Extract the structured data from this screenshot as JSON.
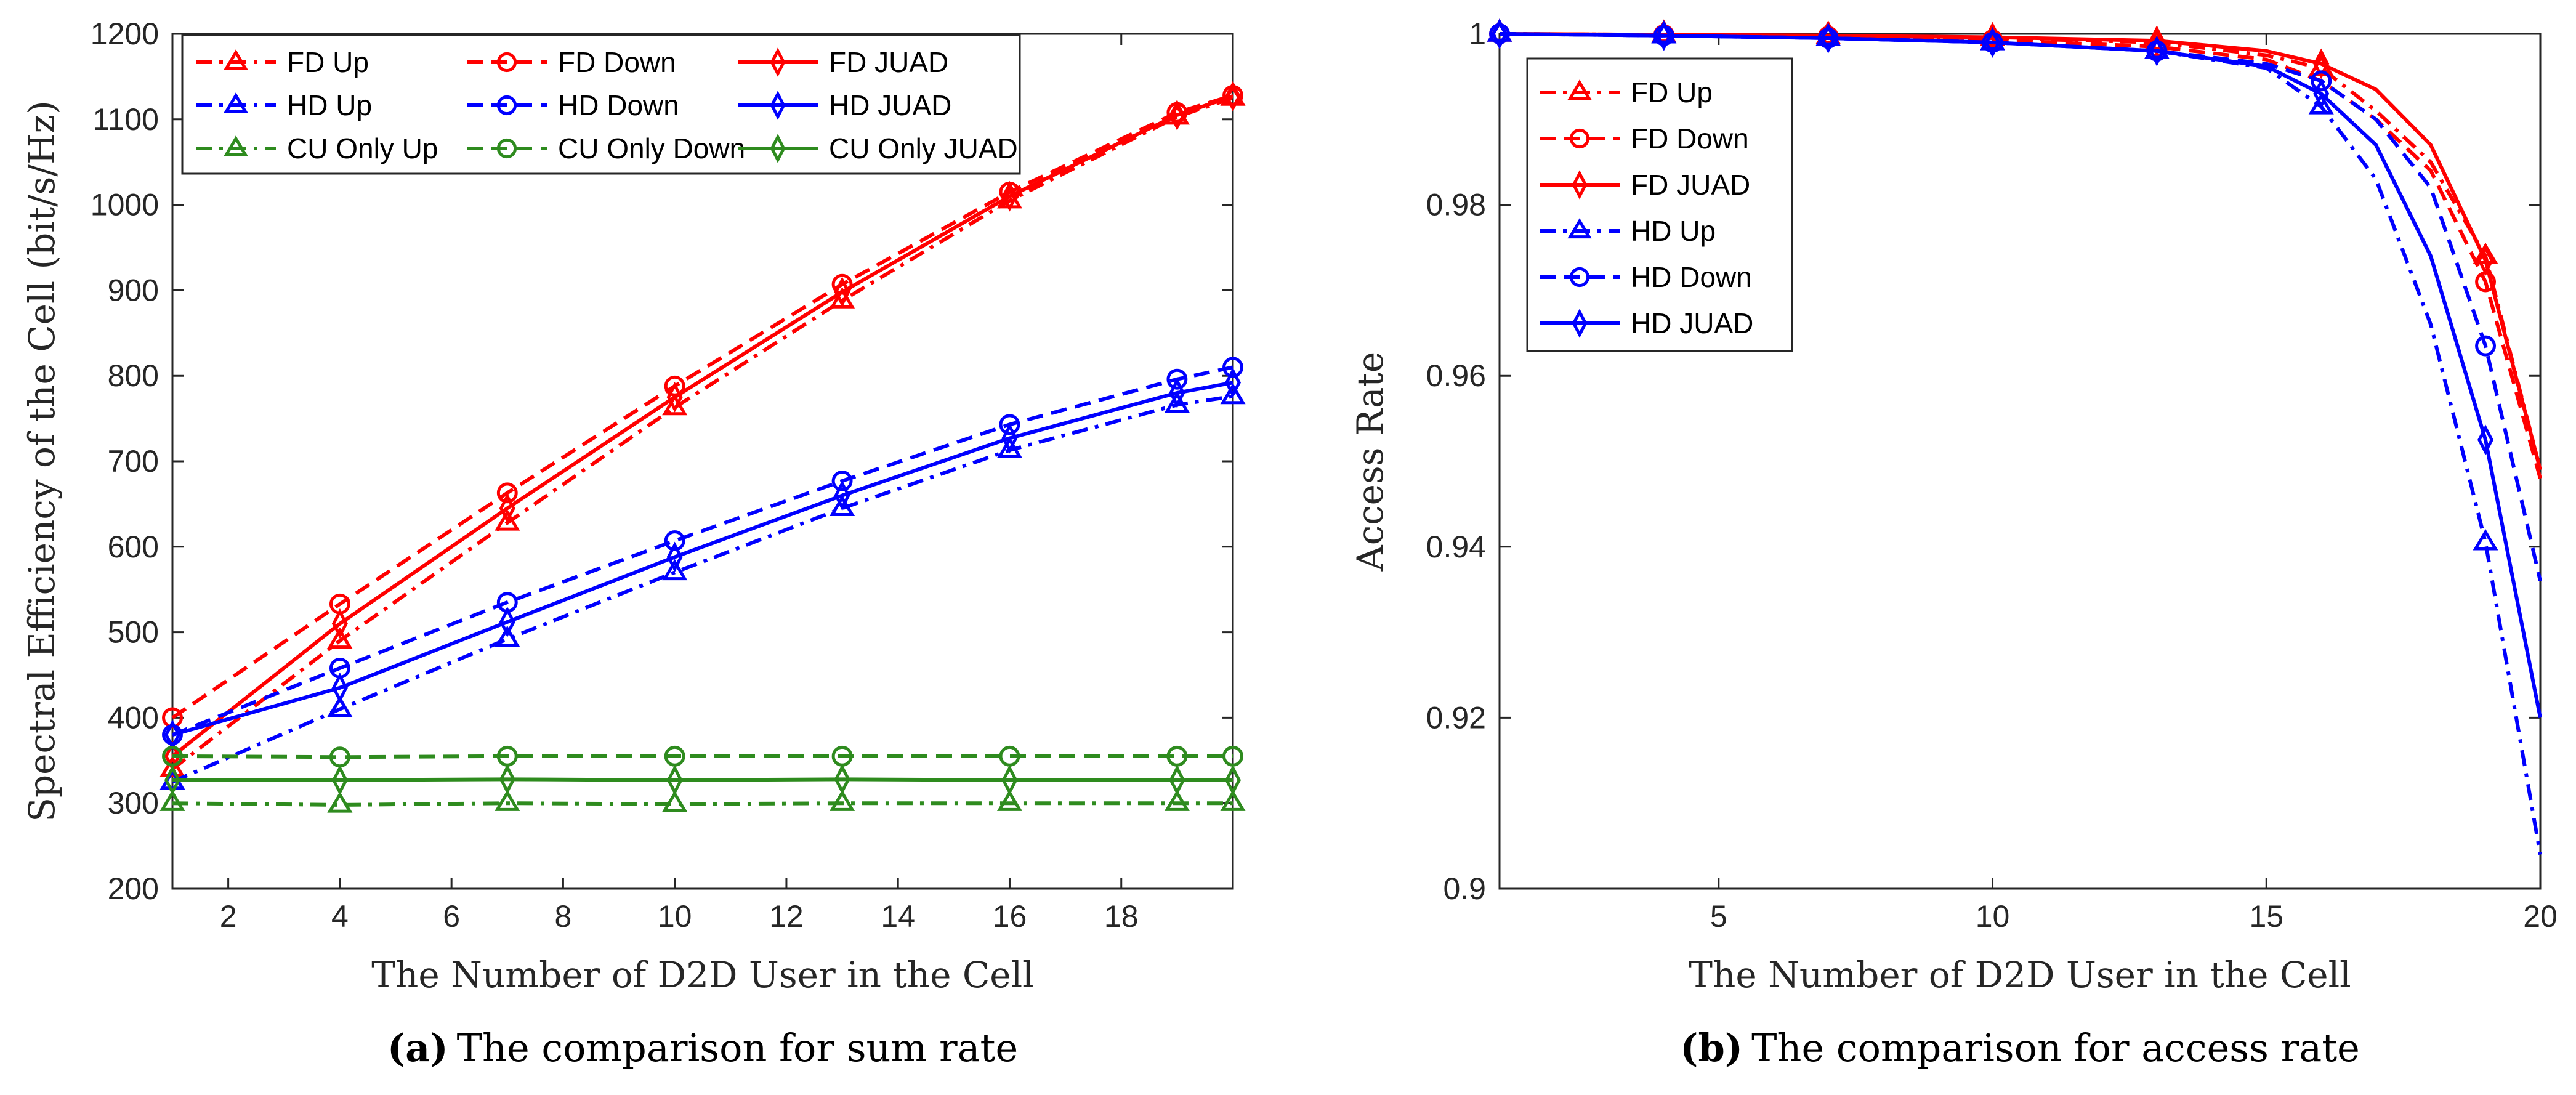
{
  "chart_data": [
    {
      "type": "line",
      "panel": "a",
      "caption_label": "(a)",
      "caption_text": "The comparison for sum rate",
      "xlabel": "The Number of D2D User in the Cell",
      "ylabel": "Spectral Efficiency of the Cell (bit/s/Hz)",
      "xlim": [
        1,
        20
      ],
      "ylim": [
        200,
        1200
      ],
      "xticks": [
        2,
        4,
        6,
        8,
        10,
        12,
        14,
        16,
        18
      ],
      "yticks": [
        200,
        300,
        400,
        500,
        600,
        700,
        800,
        900,
        1000,
        1100,
        1200
      ],
      "grid": false,
      "legend_position": "top-left",
      "legend_columns": 3,
      "x": [
        1,
        4,
        7,
        10,
        13,
        16,
        19,
        20
      ],
      "series": [
        {
          "name": "FD Up",
          "color": "#ff0000",
          "dash": "dashdot",
          "marker": "triangle",
          "values": [
            340,
            490,
            628,
            763,
            888,
            1005,
            1103,
            1125
          ]
        },
        {
          "name": "FD Down",
          "color": "#ff0000",
          "dash": "dashed",
          "marker": "circle",
          "values": [
            400,
            533,
            663,
            788,
            907,
            1015,
            1108,
            1128
          ]
        },
        {
          "name": "FD JUAD",
          "color": "#ff0000",
          "dash": "solid",
          "marker": "diamond",
          "values": [
            355,
            510,
            645,
            775,
            898,
            1010,
            1105,
            1127
          ]
        },
        {
          "name": "HD Up",
          "color": "#0000ff",
          "dash": "dashdot",
          "marker": "triangle",
          "values": [
            325,
            410,
            492,
            570,
            645,
            713,
            766,
            776
          ]
        },
        {
          "name": "HD Down",
          "color": "#0000ff",
          "dash": "dashed",
          "marker": "circle",
          "values": [
            380,
            458,
            535,
            607,
            677,
            743,
            796,
            810
          ]
        },
        {
          "name": "HD JUAD",
          "color": "#0000ff",
          "dash": "solid",
          "marker": "diamond",
          "values": [
            380,
            435,
            512,
            588,
            660,
            727,
            780,
            792
          ]
        },
        {
          "name": "CU Only Up",
          "color": "#2e8b1e",
          "dash": "dashdot",
          "marker": "triangle",
          "values": [
            300,
            298,
            300,
            299,
            300,
            300,
            300,
            300
          ]
        },
        {
          "name": "CU Only Down",
          "color": "#2e8b1e",
          "dash": "dashed",
          "marker": "circle",
          "values": [
            355,
            354,
            355,
            355,
            355,
            355,
            355,
            355
          ]
        },
        {
          "name": "CU Only JUAD",
          "color": "#2e8b1e",
          "dash": "solid",
          "marker": "diamond",
          "values": [
            327,
            327,
            328,
            327,
            328,
            327,
            327,
            327
          ]
        }
      ]
    },
    {
      "type": "line",
      "panel": "b",
      "caption_label": "(b)",
      "caption_text": "The comparison for access rate",
      "xlabel": "The Number of D2D User in the Cell",
      "ylabel": "Access Rate",
      "xlim": [
        1,
        20
      ],
      "ylim": [
        0.9,
        1.0
      ],
      "xticks": [
        5,
        10,
        15,
        20
      ],
      "yticks": [
        0.9,
        0.92,
        0.94,
        0.96,
        0.98,
        1.0
      ],
      "ytick_labels": [
        "0.9",
        "0.92",
        "0.94",
        "0.96",
        "0.98",
        "1"
      ],
      "grid": false,
      "legend_position": "top-left",
      "legend_columns": 1,
      "x": [
        1,
        4,
        7,
        10,
        13,
        15,
        16,
        17,
        18,
        19,
        20
      ],
      "marker_x": [
        1,
        4,
        7,
        10,
        13,
        16,
        19
      ],
      "series": [
        {
          "name": "FD Up",
          "color": "#ff0000",
          "dash": "dashdot",
          "marker": "triangle",
          "values": [
            1.0,
            0.9999,
            0.9997,
            0.9995,
            0.999,
            0.9975,
            0.996,
            0.991,
            0.985,
            0.974,
            0.949
          ]
        },
        {
          "name": "FD Down",
          "color": "#ff0000",
          "dash": "dashed",
          "marker": "circle",
          "values": [
            1.0,
            0.9999,
            0.9997,
            0.9993,
            0.9985,
            0.997,
            0.9945,
            0.99,
            0.984,
            0.971,
            0.948
          ]
        },
        {
          "name": "FD JUAD",
          "color": "#ff0000",
          "dash": "solid",
          "marker": "diamond",
          "values": [
            1.0,
            0.9999,
            0.9998,
            0.9996,
            0.9992,
            0.998,
            0.9965,
            0.9935,
            0.987,
            0.9735,
            0.949
          ]
        },
        {
          "name": "HD Up",
          "color": "#0000ff",
          "dash": "dashdot",
          "marker": "triangle",
          "values": [
            1.0,
            0.9998,
            0.9995,
            0.999,
            0.998,
            0.996,
            0.9915,
            0.983,
            0.966,
            0.9405,
            0.904
          ]
        },
        {
          "name": "HD Down",
          "color": "#0000ff",
          "dash": "dashed",
          "marker": "circle",
          "values": [
            1.0,
            0.9998,
            0.9995,
            0.999,
            0.998,
            0.9965,
            0.9945,
            0.99,
            0.982,
            0.9635,
            0.936
          ]
        },
        {
          "name": "HD JUAD",
          "color": "#0000ff",
          "dash": "solid",
          "marker": "diamond",
          "values": [
            1.0,
            0.9998,
            0.9995,
            0.999,
            0.998,
            0.9962,
            0.993,
            0.987,
            0.974,
            0.9525,
            0.92
          ]
        }
      ]
    }
  ]
}
